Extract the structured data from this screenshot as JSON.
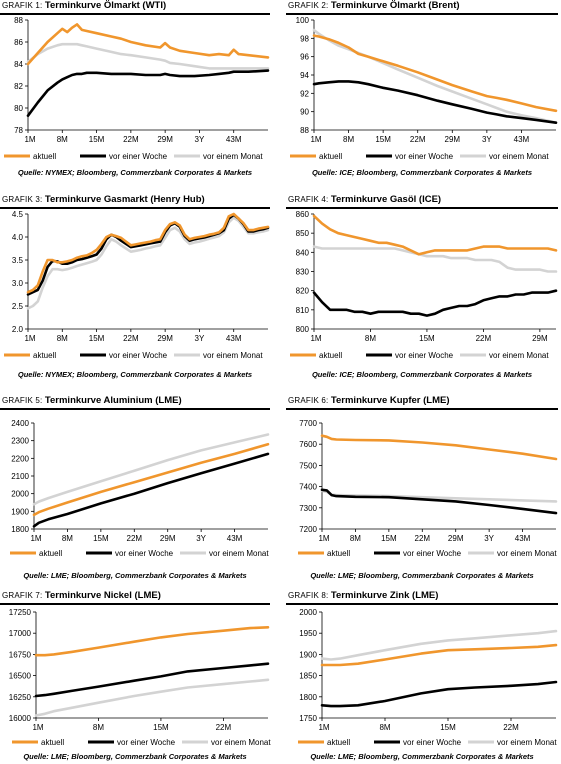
{
  "colors": {
    "aktuell": "#f0962d",
    "woche": "#000000",
    "monat": "#d3d3d3"
  },
  "legend": {
    "aktuell": "aktuell",
    "woche": "vor einer Woche",
    "monat": "vor einem Monat"
  },
  "chart_data": [
    {
      "type": "line",
      "title_prefix": "Grafik 1:",
      "title": "Terminkurve Ölmarkt (WTI)",
      "source": "Quelle: NYMEX; Bloomberg, Commerzbank Corporates & Markets",
      "categories": [
        "1M",
        "8M",
        "15M",
        "22M",
        "29M",
        "3Y",
        "43M"
      ],
      "tick_positions": [
        1,
        8,
        15,
        22,
        29,
        36,
        43
      ],
      "xlim": [
        1,
        50
      ],
      "ylim": [
        78,
        88
      ],
      "yticks": [
        78,
        80,
        82,
        84,
        86,
        88
      ],
      "x": [
        1,
        3,
        5,
        7,
        8,
        9,
        10,
        11,
        12,
        13,
        15,
        18,
        20,
        22,
        25,
        28,
        29,
        30,
        32,
        35,
        38,
        40,
        42,
        43,
        44,
        46,
        50
      ],
      "series": [
        {
          "name": "aktuell",
          "values": [
            84.0,
            85.0,
            86.0,
            86.8,
            87.2,
            86.9,
            87.3,
            87.6,
            87.1,
            87.0,
            86.8,
            86.5,
            86.3,
            86.0,
            85.7,
            85.5,
            85.9,
            85.5,
            85.2,
            85.0,
            84.8,
            84.9,
            84.8,
            85.3,
            84.9,
            84.8,
            84.6
          ]
        },
        {
          "name": "vor einer Woche",
          "values": [
            79.3,
            80.5,
            81.6,
            82.3,
            82.6,
            82.8,
            83.0,
            83.1,
            83.1,
            83.2,
            83.2,
            83.1,
            83.1,
            83.1,
            83.0,
            83.0,
            83.1,
            83.0,
            82.9,
            82.9,
            83.0,
            83.1,
            83.2,
            83.3,
            83.3,
            83.3,
            83.4
          ]
        },
        {
          "name": "vor einem Monat",
          "values": [
            84.2,
            84.9,
            85.4,
            85.7,
            85.8,
            85.8,
            85.8,
            85.8,
            85.7,
            85.6,
            85.4,
            85.1,
            84.9,
            84.8,
            84.6,
            84.4,
            84.3,
            84.1,
            84.0,
            83.8,
            83.6,
            83.6,
            83.6,
            83.6,
            83.6,
            83.6,
            83.6
          ]
        }
      ]
    },
    {
      "type": "line",
      "title_prefix": "Grafik 2:",
      "title": "Terminkurve Ölmarkt (Brent)",
      "source": "Quelle: ICE; Bloomberg, Commerzbank Corporates & Markets",
      "categories": [
        "1M",
        "8M",
        "15M",
        "22M",
        "29M",
        "3Y",
        "43M"
      ],
      "tick_positions": [
        1,
        8,
        15,
        22,
        29,
        36,
        43
      ],
      "xlim": [
        1,
        50
      ],
      "ylim": [
        88,
        100
      ],
      "yticks": [
        88,
        90,
        92,
        94,
        96,
        98,
        100
      ],
      "x": [
        1,
        2,
        4,
        6,
        8,
        10,
        12,
        15,
        18,
        22,
        26,
        29,
        33,
        36,
        38,
        40,
        43,
        46,
        50
      ],
      "series": [
        {
          "name": "aktuell",
          "values": [
            98.3,
            98.2,
            97.9,
            97.5,
            97.0,
            96.3,
            96.0,
            95.5,
            95.0,
            94.3,
            93.5,
            92.9,
            92.2,
            91.7,
            91.5,
            91.3,
            90.9,
            90.5,
            90.1
          ]
        },
        {
          "name": "vor einer Woche",
          "values": [
            93.0,
            93.1,
            93.2,
            93.3,
            93.3,
            93.2,
            93.0,
            92.6,
            92.3,
            91.8,
            91.2,
            90.8,
            90.3,
            89.9,
            89.7,
            89.5,
            89.3,
            89.1,
            88.8
          ]
        },
        {
          "name": "vor einem Monat",
          "values": [
            98.9,
            98.5,
            97.8,
            97.2,
            96.8,
            96.4,
            96.0,
            95.3,
            94.6,
            93.7,
            92.8,
            92.2,
            91.4,
            90.8,
            90.4,
            90.0,
            89.6,
            89.3,
            88.8
          ]
        }
      ]
    },
    {
      "type": "line",
      "title_prefix": "Grafik 3:",
      "title": "Terminkurve Gasmarkt (Henry Hub)",
      "source": "Quelle: NYMEX; Bloomberg, Commerzbank Corporates & Markets",
      "categories": [
        "1M",
        "8M",
        "15M",
        "22M",
        "29M",
        "3Y",
        "43M"
      ],
      "tick_positions": [
        1,
        8,
        15,
        22,
        29,
        36,
        43
      ],
      "xlim": [
        1,
        50
      ],
      "ylim": [
        2.0,
        4.5
      ],
      "yticks": [
        2.0,
        2.5,
        3.0,
        3.5,
        4.0,
        4.5
      ],
      "x": [
        1,
        2,
        3,
        4,
        5,
        6,
        7,
        8,
        9,
        10,
        11,
        12,
        13,
        14,
        15,
        16,
        17,
        18,
        19,
        20,
        21,
        22,
        23,
        24,
        25,
        26,
        27,
        28,
        29,
        30,
        31,
        32,
        33,
        34,
        35,
        36,
        37,
        38,
        39,
        40,
        41,
        42,
        43,
        44,
        45,
        46,
        47,
        48,
        49,
        50
      ],
      "series": [
        {
          "name": "aktuell",
          "values": [
            2.8,
            2.85,
            2.95,
            3.25,
            3.5,
            3.5,
            3.45,
            3.45,
            3.47,
            3.5,
            3.55,
            3.58,
            3.6,
            3.65,
            3.72,
            3.85,
            4.0,
            4.05,
            4.02,
            3.98,
            3.9,
            3.82,
            3.84,
            3.86,
            3.88,
            3.9,
            3.93,
            3.95,
            4.15,
            4.28,
            4.32,
            4.25,
            4.05,
            3.95,
            3.98,
            4.0,
            4.02,
            4.05,
            4.07,
            4.1,
            4.2,
            4.45,
            4.5,
            4.4,
            4.3,
            4.15,
            4.15,
            4.18,
            4.2,
            4.22
          ]
        },
        {
          "name": "vor einer Woche",
          "values": [
            2.75,
            2.8,
            2.85,
            3.05,
            3.35,
            3.48,
            3.47,
            3.42,
            3.42,
            3.45,
            3.5,
            3.52,
            3.55,
            3.58,
            3.62,
            3.75,
            3.95,
            4.05,
            4.0,
            3.92,
            3.85,
            3.78,
            3.8,
            3.82,
            3.84,
            3.86,
            3.88,
            3.9,
            4.1,
            4.25,
            4.3,
            4.22,
            4.02,
            3.92,
            3.95,
            3.97,
            3.99,
            4.02,
            4.05,
            4.08,
            4.15,
            4.4,
            4.48,
            4.4,
            4.28,
            4.12,
            4.12,
            4.15,
            4.17,
            4.2
          ]
        },
        {
          "name": "vor einem Monat",
          "values": [
            2.45,
            2.5,
            2.6,
            2.9,
            3.15,
            3.3,
            3.3,
            3.28,
            3.3,
            3.33,
            3.37,
            3.4,
            3.43,
            3.46,
            3.5,
            3.62,
            3.8,
            3.95,
            3.9,
            3.82,
            3.75,
            3.68,
            3.7,
            3.72,
            3.75,
            3.77,
            3.8,
            3.82,
            3.98,
            4.15,
            4.2,
            4.12,
            3.95,
            3.85,
            3.88,
            3.9,
            3.93,
            3.96,
            3.99,
            4.02,
            4.1,
            4.32,
            4.42,
            4.35,
            4.22,
            4.08,
            4.08,
            4.1,
            4.12,
            4.15
          ]
        }
      ]
    },
    {
      "type": "line",
      "title_prefix": "Grafik 4:",
      "title": "Terminkurve Gasöl (ICE)",
      "source": "Quelle: ICE; Bloomberg, Commerzbank Corporates & Markets",
      "categories": [
        "1M",
        "8M",
        "15M",
        "22M",
        "29M"
      ],
      "tick_positions": [
        1,
        8,
        15,
        22,
        29
      ],
      "xlim": [
        1,
        31
      ],
      "ylim": [
        800,
        860
      ],
      "yticks": [
        800,
        810,
        820,
        830,
        840,
        850,
        860
      ],
      "x": [
        1,
        2,
        3,
        4,
        5,
        6,
        7,
        8,
        9,
        10,
        11,
        12,
        13,
        14,
        15,
        16,
        17,
        18,
        19,
        20,
        21,
        22,
        23,
        24,
        25,
        26,
        27,
        28,
        29,
        30,
        31
      ],
      "series": [
        {
          "name": "aktuell",
          "values": [
            859,
            855,
            852,
            850,
            849,
            848,
            847,
            846,
            845,
            845,
            844,
            843,
            841,
            839,
            840,
            841,
            841,
            841,
            841,
            841,
            842,
            843,
            843,
            843,
            842,
            842,
            842,
            842,
            842,
            842,
            841
          ]
        },
        {
          "name": "vor einer Woche",
          "values": [
            819,
            814,
            810,
            810,
            810,
            809,
            809,
            808,
            809,
            809,
            809,
            809,
            808,
            808,
            807,
            808,
            810,
            811,
            812,
            812,
            813,
            815,
            816,
            817,
            817,
            818,
            818,
            819,
            819,
            819,
            820
          ]
        },
        {
          "name": "vor einem Monat",
          "values": [
            843,
            842,
            842,
            842,
            842,
            842,
            842,
            842,
            842,
            842,
            842,
            841,
            840,
            839,
            838,
            838,
            838,
            837,
            837,
            837,
            836,
            836,
            836,
            835,
            832,
            831,
            831,
            831,
            831,
            830,
            830
          ]
        }
      ]
    },
    {
      "type": "line",
      "title_prefix": "Grafik 5:",
      "title": "Terminkurve Aluminium (LME)",
      "source": "Quelle: LME; Bloomberg, Commerzbank Corporates & Markets",
      "categories": [
        "1M",
        "8M",
        "15M",
        "22M",
        "29M",
        "3Y",
        "43M"
      ],
      "tick_positions": [
        1,
        8,
        15,
        22,
        29,
        36,
        43
      ],
      "xlim": [
        1,
        50
      ],
      "ylim": [
        1800,
        2400
      ],
      "yticks": [
        1800,
        1900,
        2000,
        2100,
        2200,
        2300,
        2400
      ],
      "x": [
        1,
        2,
        4,
        8,
        15,
        22,
        29,
        36,
        43,
        50
      ],
      "series": [
        {
          "name": "aktuell",
          "values": [
            1880,
            1895,
            1915,
            1950,
            2010,
            2065,
            2120,
            2175,
            2225,
            2280
          ]
        },
        {
          "name": "vor einer Woche",
          "values": [
            1815,
            1835,
            1855,
            1885,
            1945,
            2000,
            2060,
            2115,
            2170,
            2225
          ]
        },
        {
          "name": "vor einem Monat",
          "values": [
            1940,
            1955,
            1975,
            2010,
            2070,
            2130,
            2190,
            2245,
            2290,
            2335
          ]
        }
      ]
    },
    {
      "type": "line",
      "title_prefix": "Grafik 6:",
      "title": "Terminkurve Kupfer (LME)",
      "source": "Quelle: LME; Bloomberg, Commerzbank Corporates & Markets",
      "categories": [
        "1M",
        "8M",
        "15M",
        "22M",
        "29M",
        "3Y",
        "43M"
      ],
      "tick_positions": [
        1,
        8,
        15,
        22,
        29,
        36,
        43
      ],
      "xlim": [
        1,
        50
      ],
      "ylim": [
        7200,
        7700
      ],
      "yticks": [
        7200,
        7300,
        7400,
        7500,
        7600,
        7700
      ],
      "x": [
        1,
        2,
        3,
        4,
        8,
        15,
        22,
        29,
        36,
        43,
        50
      ],
      "series": [
        {
          "name": "aktuell",
          "values": [
            7640,
            7635,
            7625,
            7622,
            7620,
            7618,
            7608,
            7595,
            7575,
            7555,
            7530
          ]
        },
        {
          "name": "vor einer Woche",
          "values": [
            7385,
            7382,
            7360,
            7355,
            7352,
            7350,
            7340,
            7330,
            7313,
            7295,
            7275
          ]
        },
        {
          "name": "vor einem Monat",
          "values": [
            7380,
            7375,
            7362,
            7360,
            7358,
            7355,
            7350,
            7345,
            7340,
            7335,
            7330
          ]
        }
      ]
    },
    {
      "type": "line",
      "title_prefix": "Grafik 7:",
      "title": "Terminkurve Nickel (LME)",
      "source": "Quelle: LME; Bloomberg, Commerzbank Corporates & Markets",
      "categories": [
        "1M",
        "8M",
        "15M",
        "22M"
      ],
      "tick_positions": [
        1,
        8,
        15,
        22
      ],
      "xlim": [
        1,
        27
      ],
      "ylim": [
        16000,
        17250
      ],
      "yticks": [
        16000,
        16250,
        16500,
        16750,
        17000,
        17250
      ],
      "x": [
        1,
        2,
        3,
        5,
        8,
        12,
        15,
        18,
        22,
        25,
        27
      ],
      "series": [
        {
          "name": "aktuell",
          "values": [
            16740,
            16740,
            16750,
            16780,
            16830,
            16900,
            16950,
            16990,
            17030,
            17060,
            17070
          ]
        },
        {
          "name": "vor einer Woche",
          "values": [
            16260,
            16270,
            16285,
            16320,
            16370,
            16440,
            16490,
            16550,
            16590,
            16620,
            16640
          ]
        },
        {
          "name": "vor einem Monat",
          "values": [
            16030,
            16050,
            16080,
            16120,
            16180,
            16260,
            16310,
            16360,
            16400,
            16430,
            16450
          ]
        }
      ]
    },
    {
      "type": "line",
      "title_prefix": "Grafik 8:",
      "title": "Terminkurve Zink (LME)",
      "source": "Quelle: LME; Bloomberg, Commerzbank Corporates & Markets",
      "categories": [
        "1M",
        "8M",
        "15M",
        "22M"
      ],
      "tick_positions": [
        1,
        8,
        15,
        22
      ],
      "xlim": [
        1,
        27
      ],
      "ylim": [
        1750,
        2000
      ],
      "yticks": [
        1750,
        1800,
        1850,
        1900,
        1950,
        2000
      ],
      "x": [
        1,
        2,
        3,
        5,
        8,
        12,
        15,
        18,
        22,
        25,
        27
      ],
      "series": [
        {
          "name": "aktuell",
          "values": [
            1875,
            1875,
            1875,
            1878,
            1888,
            1902,
            1910,
            1912,
            1915,
            1918,
            1922
          ]
        },
        {
          "name": "vor einer Woche",
          "values": [
            1780,
            1778,
            1778,
            1780,
            1790,
            1808,
            1818,
            1822,
            1826,
            1830,
            1835
          ]
        },
        {
          "name": "vor einem Monat",
          "values": [
            1890,
            1888,
            1890,
            1898,
            1910,
            1925,
            1933,
            1938,
            1945,
            1950,
            1955
          ]
        }
      ]
    }
  ]
}
